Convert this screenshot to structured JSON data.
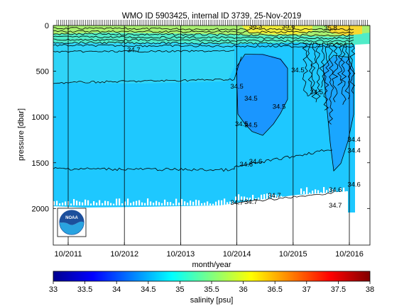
{
  "chart_data": {
    "type": "heatmap",
    "title": "WMO ID 5903425, internal ID 3739, 25-Nov-2019",
    "xlabel": "month/year",
    "ylabel": "pressure [dbar]",
    "colorbar_label": "salinity [psu]",
    "x_tick_labels": [
      "10/2011",
      "10/2012",
      "10/2013",
      "10/2014",
      "10/2015",
      "10/2016"
    ],
    "y_tick_values": [
      0,
      500,
      1000,
      1500,
      2000
    ],
    "y_range": [
      0,
      2400
    ],
    "y_reversed": true,
    "colorbar_ticks": [
      "33",
      "33.5",
      "34",
      "34.5",
      "35",
      "35.5",
      "36",
      "36.5",
      "37",
      "37.5",
      "38"
    ],
    "colorbar_range": [
      33,
      38
    ],
    "colormap": [
      "#00008f",
      "#0000ff",
      "#0080ff",
      "#00ffff",
      "#80ff80",
      "#ffff00",
      "#ff8000",
      "#ff0000",
      "#800000"
    ],
    "contour_labels": [
      {
        "text": "34.7",
        "date": "2012-12",
        "pressure": 290
      },
      {
        "text": "34.5",
        "date": "2014-10",
        "pressure": 690
      },
      {
        "text": "34.5",
        "date": "2015-01",
        "pressure": 820
      },
      {
        "text": "34.5",
        "date": "2014-11",
        "pressure": 1100
      },
      {
        "text": "34.5",
        "date": "2015-01",
        "pressure": 1110
      },
      {
        "text": "34.5",
        "date": "2015-07",
        "pressure": 910
      },
      {
        "text": "34.5",
        "date": "2015-11",
        "pressure": 510
      },
      {
        "text": "34.5",
        "date": "2016-03",
        "pressure": 750
      },
      {
        "text": "34.6",
        "date": "2014-12",
        "pressure": 1540
      },
      {
        "text": "34.6",
        "date": "2015-02",
        "pressure": 1510
      },
      {
        "text": "34.6",
        "date": "2016-07",
        "pressure": 1820
      },
      {
        "text": "34.7",
        "date": "2014-10",
        "pressure": 1960
      },
      {
        "text": "34.7",
        "date": "2015-01",
        "pressure": 1950
      },
      {
        "text": "34.7",
        "date": "2015-06",
        "pressure": 1880
      },
      {
        "text": "34.7",
        "date": "2016-07",
        "pressure": 1990
      },
      {
        "text": "34.4",
        "date": "2016-11",
        "pressure": 1270
      },
      {
        "text": "34.4",
        "date": "2016-11",
        "pressure": 1390
      },
      {
        "text": "34.6",
        "date": "2016-11",
        "pressure": 1760
      },
      {
        "text": "36.3",
        "date": "2015-02",
        "pressure": 30
      },
      {
        "text": "35.8",
        "date": "2015-09",
        "pressure": 30
      },
      {
        "text": "35.8",
        "date": "2016-06",
        "pressure": 50
      }
    ]
  },
  "logo": {
    "text": "NOAA"
  }
}
